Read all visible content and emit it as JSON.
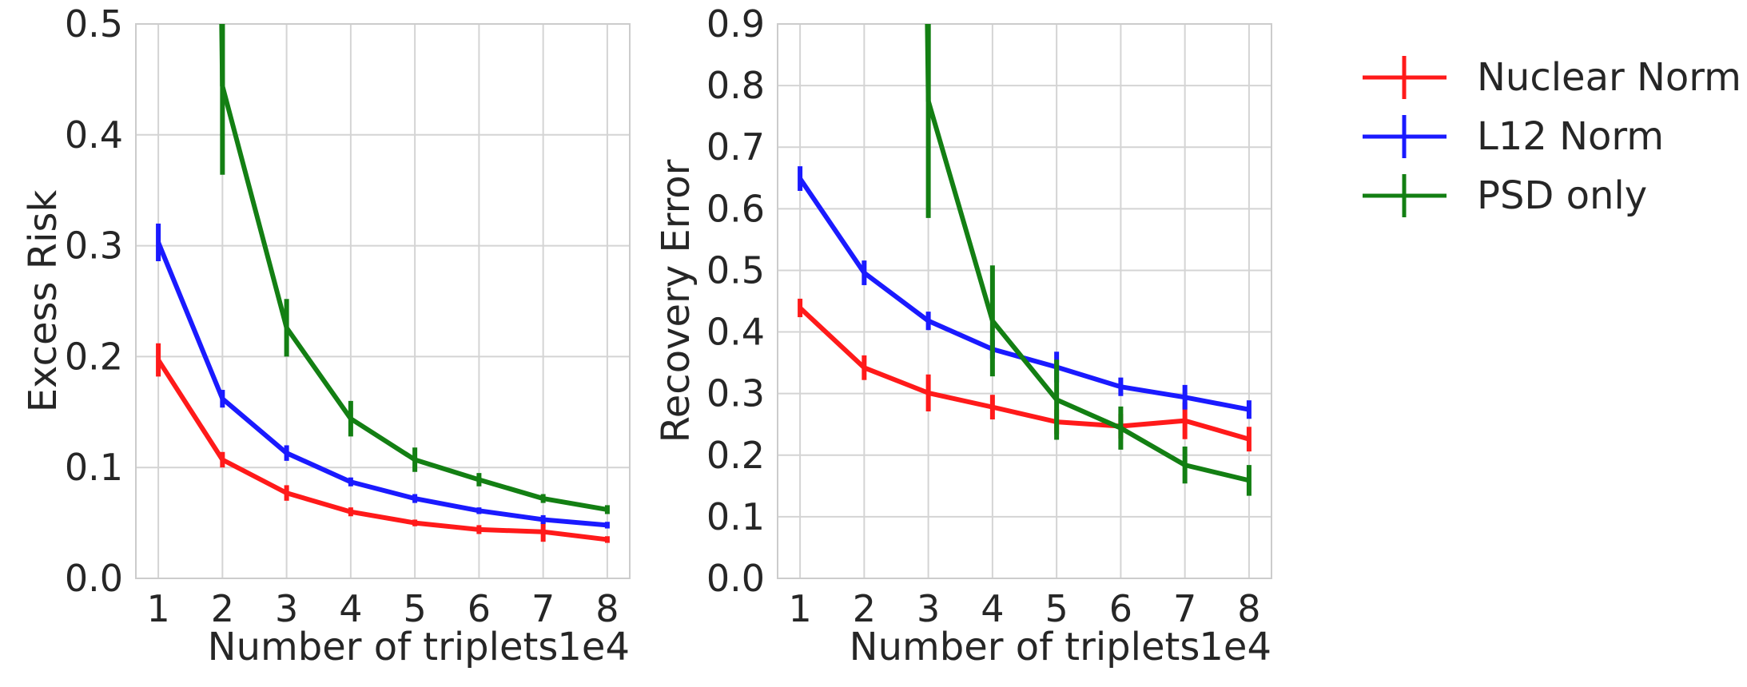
{
  "chart_data": [
    {
      "type": "line",
      "title": "",
      "xlabel": "Number of triplets",
      "ylabel": "Excess Risk",
      "x_offset_label": "1e4",
      "x": [
        1,
        2,
        3,
        4,
        5,
        6,
        7,
        8
      ],
      "xlim": [
        0.65,
        8.35
      ],
      "ylim": [
        0.0,
        0.5
      ],
      "yticks": [
        "0.0",
        "0.1",
        "0.2",
        "0.3",
        "0.4",
        "0.5"
      ],
      "xticks": [
        "1",
        "2",
        "3",
        "4",
        "5",
        "6",
        "7",
        "8"
      ],
      "grid": true,
      "series": [
        {
          "name": "Nuclear Norm",
          "color": "#ff1a1a",
          "values": [
            0.197,
            0.107,
            0.077,
            0.06,
            0.05,
            0.044,
            0.042,
            0.035
          ],
          "errors": [
            0.015,
            0.007,
            0.007,
            0.004,
            0.003,
            0.004,
            0.009,
            0.003
          ]
        },
        {
          "name": "L12 Norm",
          "color": "#1a1aff",
          "values": [
            0.303,
            0.162,
            0.113,
            0.087,
            0.072,
            0.061,
            0.053,
            0.048
          ],
          "errors": [
            0.017,
            0.008,
            0.007,
            0.004,
            0.004,
            0.003,
            0.004,
            0.003
          ]
        },
        {
          "name": "PSD only",
          "color": "#137f13",
          "values": [
            null,
            0.444,
            0.226,
            0.144,
            0.107,
            0.089,
            0.072,
            0.062
          ],
          "errors": [
            null,
            0.08,
            0.026,
            0.016,
            0.011,
            0.006,
            0.004,
            0.004
          ]
        }
      ]
    },
    {
      "type": "line",
      "title": "",
      "xlabel": "Number of triplets",
      "ylabel": "Recovery Error",
      "x_offset_label": "1e4",
      "x": [
        1,
        2,
        3,
        4,
        5,
        6,
        7,
        8
      ],
      "xlim": [
        0.65,
        8.35
      ],
      "ylim": [
        0.0,
        0.9
      ],
      "yticks": [
        "0.0",
        "0.1",
        "0.2",
        "0.3",
        "0.4",
        "0.5",
        "0.6",
        "0.7",
        "0.8",
        "0.9"
      ],
      "xticks": [
        "1",
        "2",
        "3",
        "4",
        "5",
        "6",
        "7",
        "8"
      ],
      "grid": true,
      "series": [
        {
          "name": "Nuclear Norm",
          "color": "#ff1a1a",
          "values": [
            0.439,
            0.342,
            0.301,
            0.278,
            0.254,
            0.247,
            0.256,
            0.226
          ],
          "errors": [
            0.015,
            0.02,
            0.03,
            0.02,
            0.02,
            0.02,
            0.03,
            0.02
          ]
        },
        {
          "name": "L12 Norm",
          "color": "#1a1aff",
          "values": [
            0.649,
            0.496,
            0.418,
            0.372,
            0.343,
            0.311,
            0.294,
            0.274
          ],
          "errors": [
            0.02,
            0.02,
            0.015,
            0.015,
            0.025,
            0.015,
            0.02,
            0.015
          ]
        },
        {
          "name": "PSD only",
          "color": "#137f13",
          "values": [
            null,
            null,
            0.775,
            0.418,
            0.29,
            0.244,
            0.184,
            0.159
          ],
          "errors": [
            null,
            null,
            0.19,
            0.09,
            0.065,
            0.035,
            0.03,
            0.025
          ]
        }
      ]
    }
  ],
  "legend": {
    "position": "upper-right",
    "entries": [
      {
        "label": "Nuclear Norm",
        "color": "#ff1a1a"
      },
      {
        "label": "L12 Norm",
        "color": "#1a1aff"
      },
      {
        "label": "PSD only",
        "color": "#137f13"
      }
    ]
  }
}
